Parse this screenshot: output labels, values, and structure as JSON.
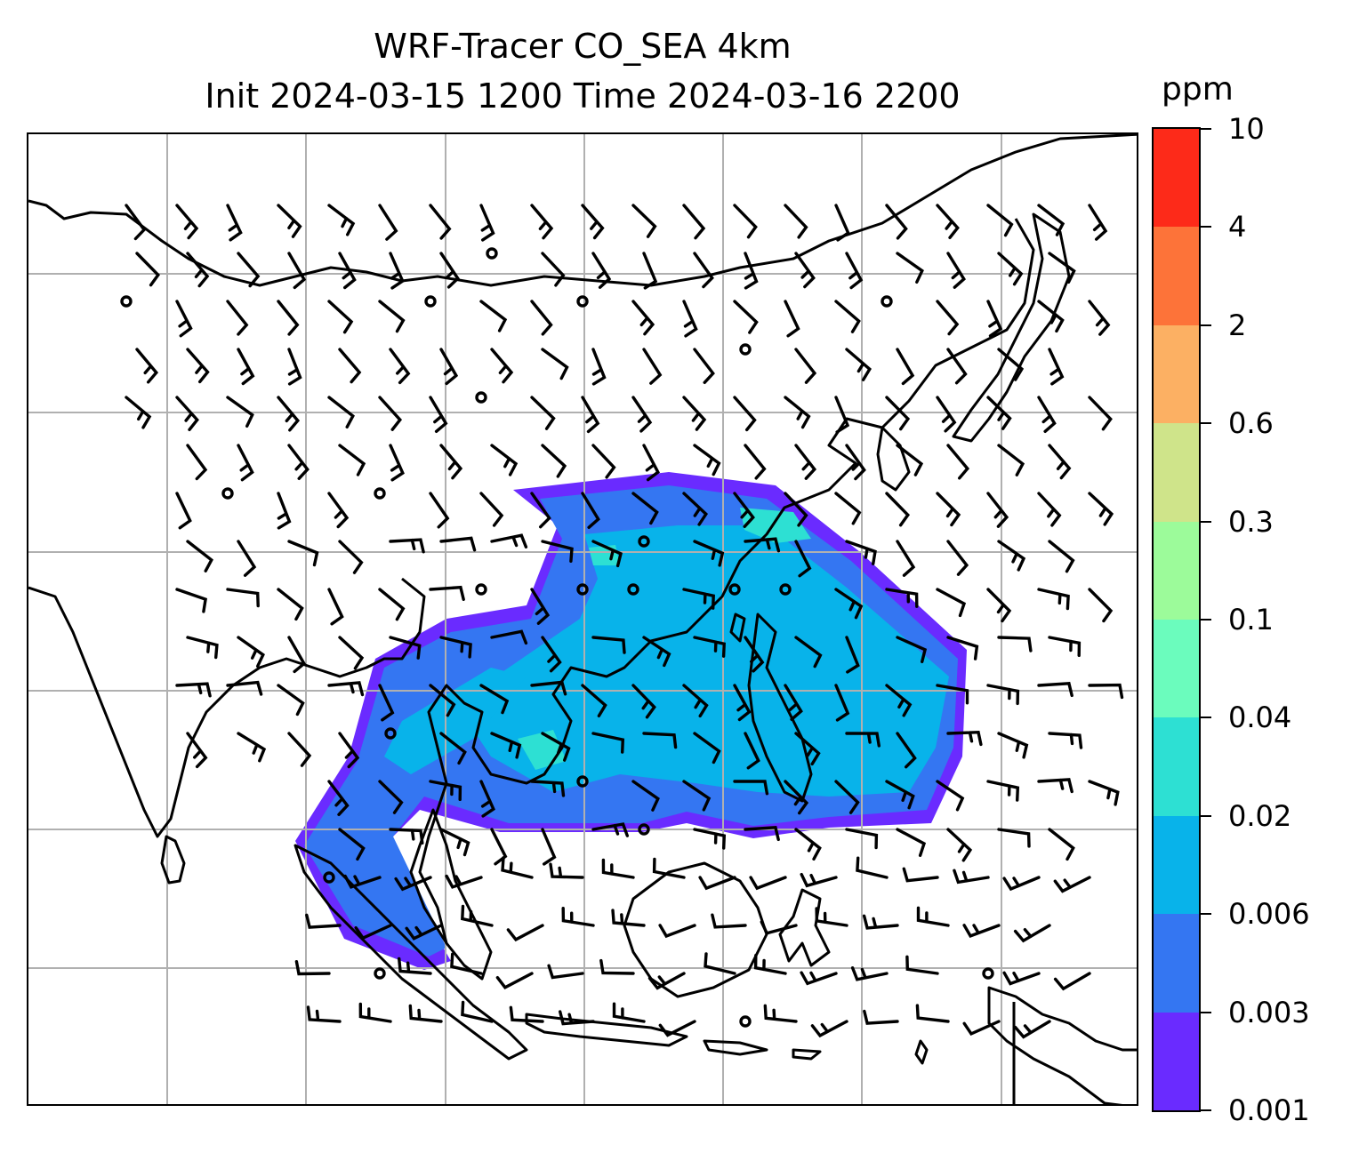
{
  "title": {
    "line1": "WRF-Tracer CO_SEA 4km",
    "line2": "Init 2024-03-15 1200 Time 2024-03-16 2200"
  },
  "colorbar": {
    "unit": "ppm",
    "levels": [
      "0.001",
      "0.003",
      "0.006",
      "0.02",
      "0.04",
      "0.1",
      "0.3",
      "0.6",
      "2",
      "4",
      "10"
    ],
    "colors": [
      "#6a2bff",
      "#3476f2",
      "#08b3ea",
      "#2de0d3",
      "#6bfcbd",
      "#9cfb9a",
      "#cfe48a",
      "#fcb063",
      "#fd7339",
      "#fd2a19"
    ]
  },
  "map": {
    "field": "CO tracer concentration",
    "overlays": [
      "wind barbs",
      "coastlines",
      "lat-lon gridlines"
    ],
    "gridlines": true
  }
}
